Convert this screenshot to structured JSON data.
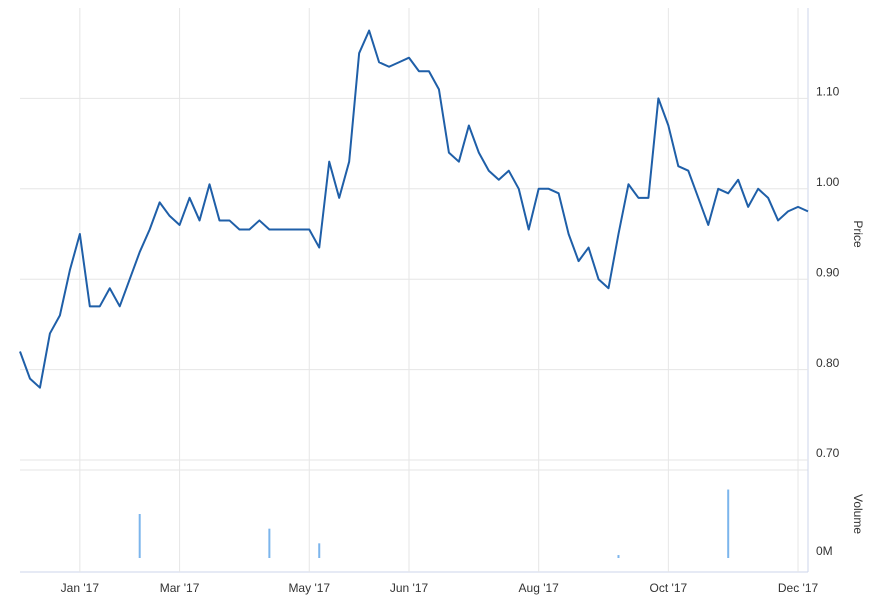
{
  "chart_data": [
    {
      "type": "line",
      "y_label": "Price",
      "categories": [
        null,
        null,
        null,
        null,
        null,
        null,
        "Jan '17",
        null,
        null,
        null,
        null,
        null,
        null,
        null,
        null,
        null,
        "Mar '17",
        null,
        null,
        null,
        null,
        null,
        null,
        null,
        null,
        null,
        null,
        null,
        null,
        "May '17",
        null,
        null,
        null,
        null,
        null,
        null,
        null,
        null,
        null,
        "Jun '17",
        null,
        null,
        null,
        null,
        null,
        null,
        null,
        null,
        null,
        null,
        null,
        null,
        "Aug '17",
        null,
        null,
        null,
        null,
        null,
        null,
        null,
        null,
        null,
        null,
        null,
        null,
        "Oct '17",
        null,
        null,
        null,
        null,
        null,
        null,
        null,
        null,
        null,
        null,
        null,
        null,
        "Dec '17",
        null
      ],
      "series": [
        {
          "name": "Price",
          "color": "#1f5fa8",
          "values": [
            0.82,
            0.79,
            0.78,
            0.84,
            0.86,
            0.91,
            0.95,
            0.87,
            0.87,
            0.89,
            0.87,
            0.9,
            0.93,
            0.955,
            0.985,
            0.97,
            0.96,
            0.99,
            0.965,
            1.005,
            0.965,
            0.965,
            0.955,
            0.955,
            0.965,
            0.955,
            0.955,
            0.955,
            0.955,
            0.955,
            0.935,
            1.03,
            0.99,
            1.03,
            1.15,
            1.175,
            1.14,
            1.135,
            1.14,
            1.145,
            1.13,
            1.13,
            1.11,
            1.04,
            1.03,
            1.07,
            1.04,
            1.02,
            1.01,
            1.02,
            1.0,
            0.955,
            1.0,
            1.0,
            0.995,
            0.95,
            0.92,
            0.935,
            0.9,
            0.89,
            0.95,
            1.005,
            0.99,
            0.99,
            1.1,
            1.07,
            1.025,
            1.02,
            0.99,
            0.96,
            1.0,
            0.995,
            1.01,
            0.98,
            1.0,
            0.99,
            0.965,
            0.975,
            0.98,
            0.975
          ]
        }
      ],
      "ylim": [
        0.7,
        1.2
      ],
      "yticks": [
        {
          "value": 0.7,
          "label": "0.70"
        },
        {
          "value": 0.8,
          "label": "0.80"
        },
        {
          "value": 0.9,
          "label": "0.90"
        },
        {
          "value": 1.0,
          "label": "1.00"
        },
        {
          "value": 1.1,
          "label": "1.10"
        }
      ],
      "grid": true
    },
    {
      "type": "bar",
      "y_label": "Volume",
      "color": "#7cb5ec",
      "values": [
        0,
        0,
        0,
        0,
        0,
        0,
        0,
        0,
        0,
        0,
        0,
        0,
        4.5,
        0,
        0,
        0,
        0,
        0,
        0,
        0,
        0,
        0,
        0,
        0,
        0,
        3,
        0,
        0,
        0,
        0,
        1.5,
        0,
        0,
        0,
        0,
        0,
        0,
        0,
        0,
        0,
        0,
        0,
        0,
        0,
        0,
        0,
        0,
        0,
        0,
        0,
        0,
        0,
        0,
        0,
        0,
        0,
        0,
        0,
        0,
        0,
        0.3,
        0,
        0,
        0,
        0,
        0,
        0,
        0,
        0,
        0,
        0,
        7,
        0,
        0,
        0,
        0,
        0,
        0,
        0,
        0
      ],
      "ylim": [
        0,
        9
      ],
      "yticks": [
        {
          "value": 0,
          "label": "0M"
        }
      ]
    }
  ]
}
